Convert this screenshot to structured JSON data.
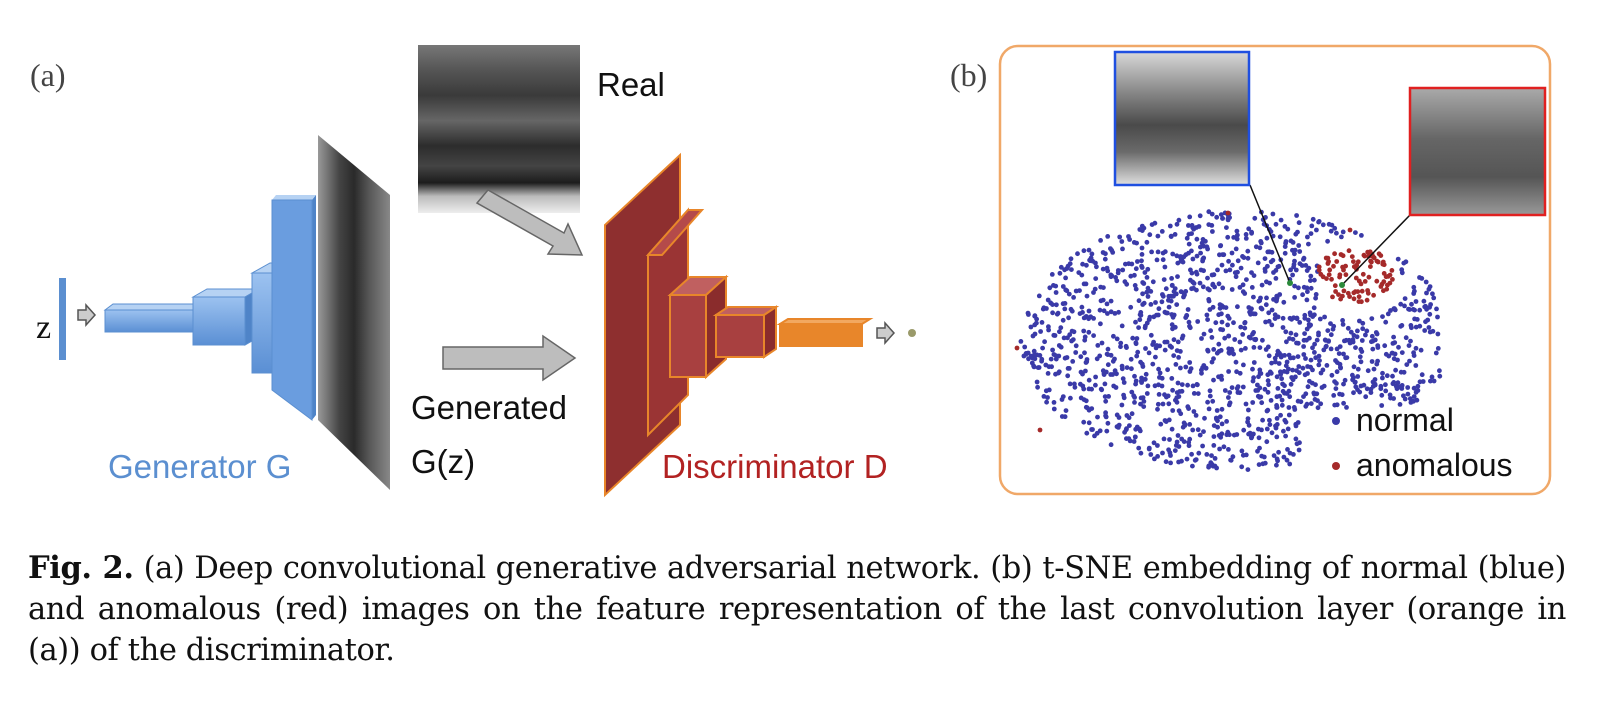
{
  "panel_a": {
    "label": "(a)",
    "z_label": "z",
    "real_label": "Real",
    "generated_label": "Generated",
    "gz_label": "G(z)",
    "generator_label": "Generator G",
    "discriminator_label": "Discriminator D"
  },
  "panel_b": {
    "label": "(b)",
    "legend": [
      {
        "label": "normal",
        "color": "#3a3aa8"
      },
      {
        "label": "anomalous",
        "color": "#a52a2a"
      }
    ],
    "normal_count": 1400,
    "anomalous_count": 90
  },
  "colors": {
    "generator": "#5b8fd0",
    "discriminator": "#a83232",
    "orange": "#e8862a"
  },
  "caption": {
    "prefix": "Fig. 2.",
    "text": " (a) Deep convolutional generative adversarial network. (b) t-SNE embedding of normal (blue) and anomalous (red) images on the feature representation of the last convolution layer (orange in (a)) of the discriminator."
  }
}
